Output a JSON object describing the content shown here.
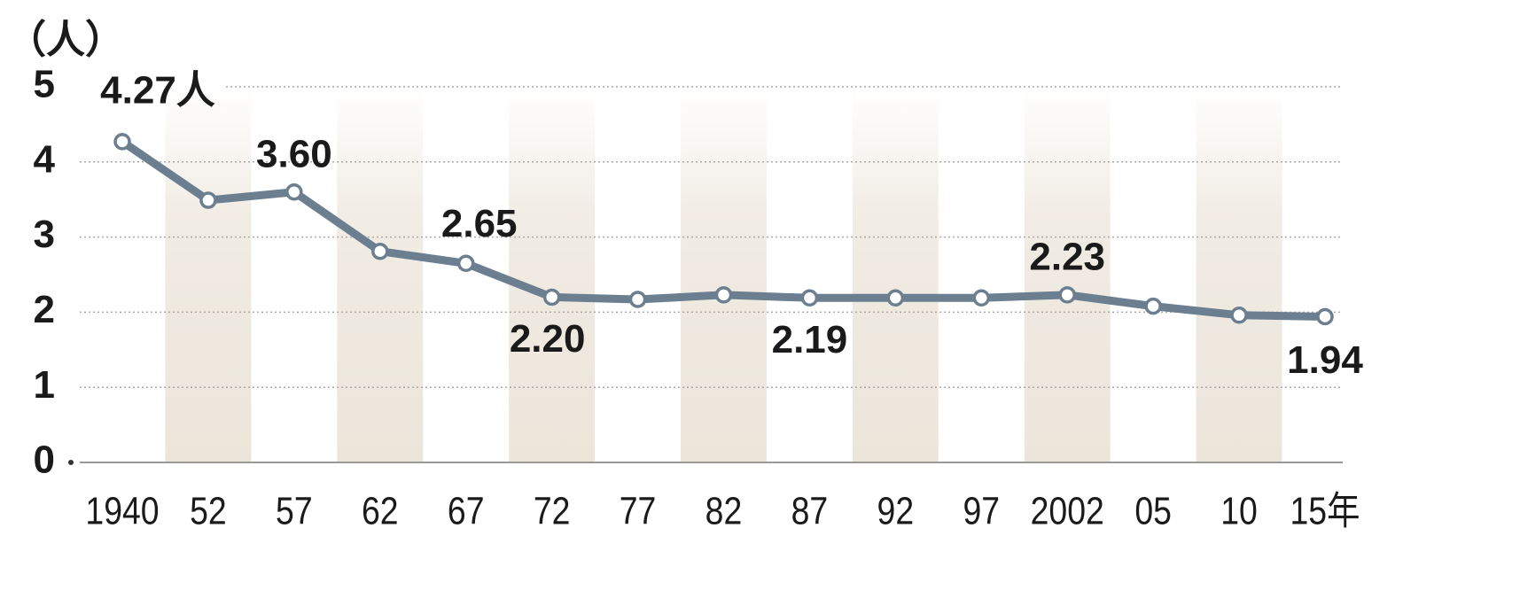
{
  "chart_data": {
    "type": "line",
    "y_label": "（人）",
    "categories": [
      "1940",
      "52",
      "57",
      "62",
      "67",
      "72",
      "77",
      "82",
      "87",
      "92",
      "97",
      "2002",
      "05",
      "10",
      "15年"
    ],
    "series": [
      {
        "color": "#6b7f91",
        "values": [
          4.27,
          3.49,
          3.6,
          2.81,
          2.65,
          2.2,
          2.17,
          2.23,
          2.19,
          2.19,
          2.19,
          2.23,
          2.08,
          1.96,
          1.94
        ],
        "value_labels": [
          "4.27人",
          null,
          "3.60",
          null,
          "2.65",
          "2.20",
          null,
          null,
          "2.19",
          null,
          null,
          "2.23",
          null,
          null,
          "1.94"
        ]
      }
    ],
    "ylim": [
      0,
      5
    ],
    "yticks": [
      0,
      1,
      2,
      3,
      4,
      5
    ],
    "grid": true
  }
}
